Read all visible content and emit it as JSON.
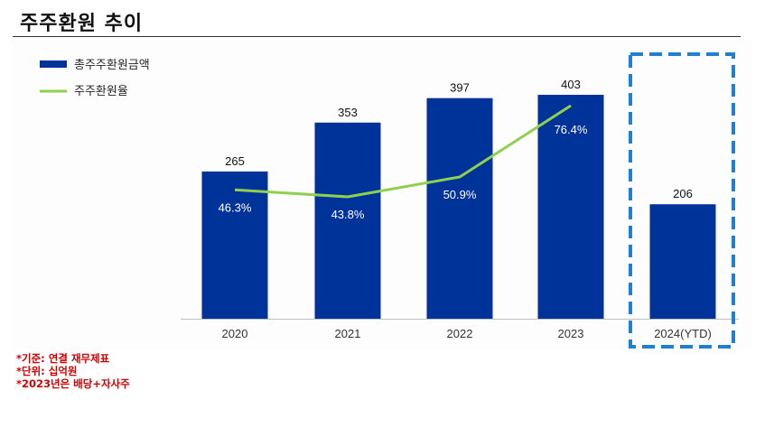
{
  "title": "주주환원 추이",
  "notes": [
    "*기준: 연결 재무제표",
    "*단위: 십억원",
    "*2023년은 배당+자사주"
  ],
  "colors": {
    "bar": "#003399",
    "line": "#8fd14f",
    "highlight_box": "#1f7fd1"
  },
  "chart_data": {
    "type": "bar",
    "categories": [
      "2020",
      "2021",
      "2022",
      "2023",
      "2024(YTD)"
    ],
    "series": [
      {
        "name": "총주주환원금액",
        "type": "bar",
        "values": [
          265,
          353,
          397,
          403,
          206
        ]
      },
      {
        "name": "주주환원율",
        "type": "line",
        "values": [
          46.3,
          43.8,
          50.9,
          76.4,
          null
        ]
      }
    ],
    "bar_labels": [
      "265",
      "353",
      "397",
      "403",
      "206"
    ],
    "line_labels": [
      "46.3%",
      "43.8%",
      "50.9%",
      "76.4%",
      null
    ],
    "highlighted_category": "2024(YTD)",
    "legend_position": "top-left",
    "grid": false
  }
}
